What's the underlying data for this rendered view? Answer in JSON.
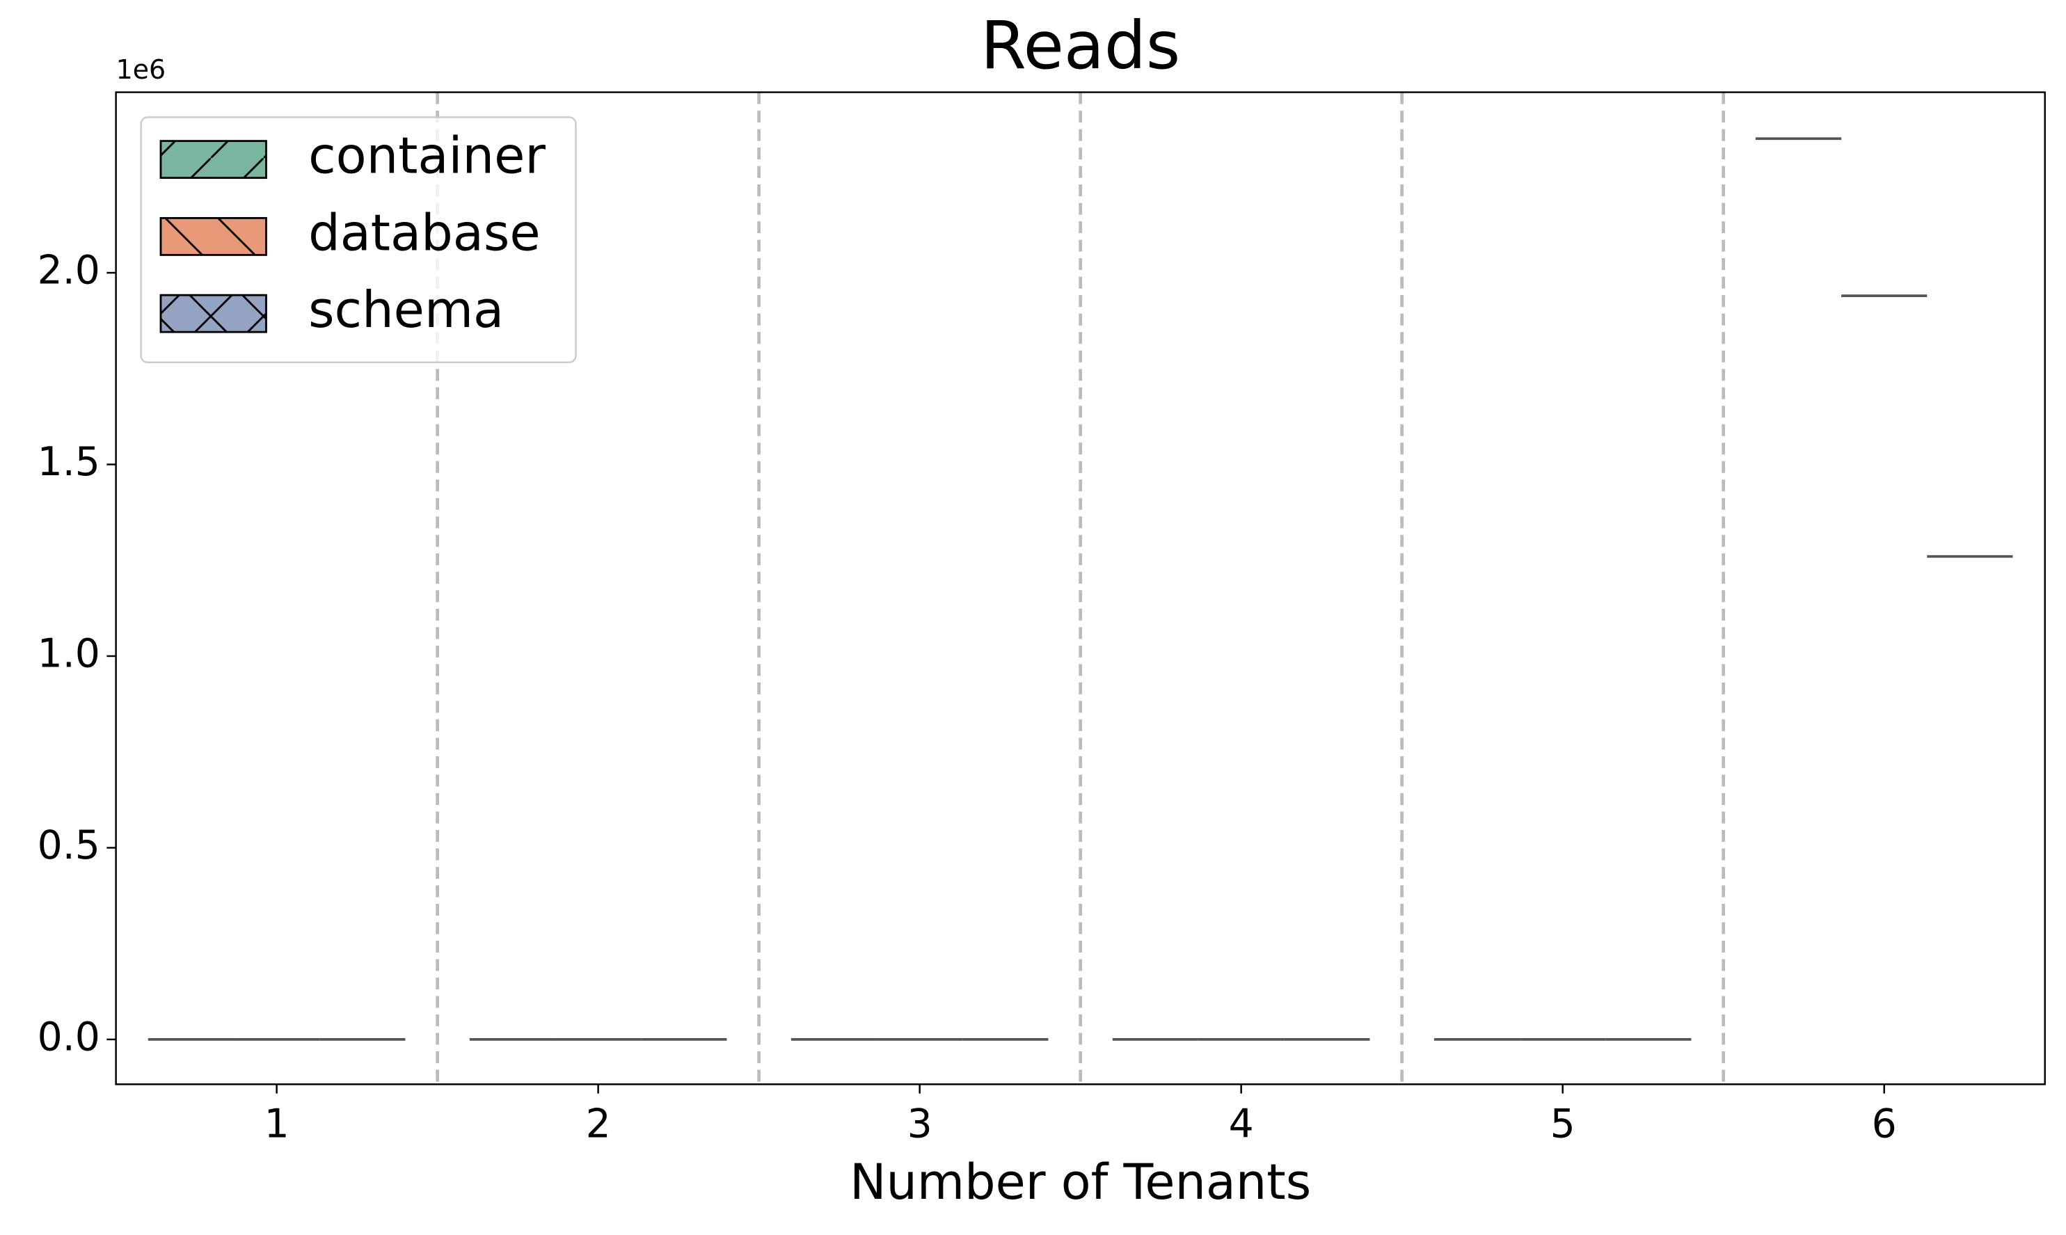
{
  "chart_data": {
    "type": "box",
    "title": "Reads",
    "x_label": "Number of Tenants",
    "y_offset_label": "1e6",
    "categories": [
      "1",
      "2",
      "3",
      "4",
      "5",
      "6"
    ],
    "series": [
      {
        "name": "container",
        "color": "#7ab5a0",
        "hatch": "/",
        "values": [
          0,
          0,
          0,
          0,
          0,
          2.35
        ]
      },
      {
        "name": "database",
        "color": "#e89a78",
        "hatch": "\\",
        "values": [
          0,
          0,
          0,
          0,
          0,
          1.94
        ]
      },
      {
        "name": "schema",
        "color": "#95a3c3",
        "hatch": "x",
        "values": [
          0,
          0,
          0,
          0,
          0,
          1.26
        ]
      }
    ],
    "ylim": [
      -0.117,
      2.471
    ],
    "yticks": [
      {
        "value": 0,
        "label": "0.0"
      },
      0.5,
      {
        "value": 1,
        "label": "1.0"
      },
      1.5,
      {
        "value": 2,
        "label": "2.0"
      }
    ],
    "legend": "upper left",
    "median_color": "#555555"
  }
}
